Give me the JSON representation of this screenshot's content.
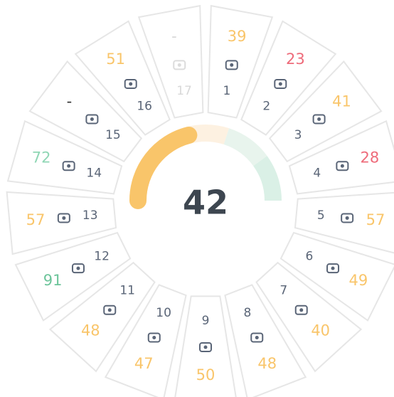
{
  "score": {
    "value": 42,
    "range": [
      0,
      100
    ],
    "color": "#f9c56a",
    "bands": [
      {
        "from": 0,
        "to": 60,
        "color": "#fdf1e1"
      },
      {
        "from": 60,
        "to": 80,
        "color": "#e8f4ed"
      },
      {
        "from": 80,
        "to": 100,
        "color": "#daf0e6"
      }
    ]
  },
  "goals": [
    {
      "number": 1,
      "score": 39,
      "color": "#f9c56a"
    },
    {
      "number": 2,
      "score": 23,
      "color": "#ee6b7a"
    },
    {
      "number": 3,
      "score": 41,
      "color": "#f9c56a"
    },
    {
      "number": 4,
      "score": 28,
      "color": "#ee6b7a"
    },
    {
      "number": 5,
      "score": 57,
      "color": "#f9c56a"
    },
    {
      "number": 6,
      "score": 49,
      "color": "#f9c56a"
    },
    {
      "number": 7,
      "score": 40,
      "color": "#f9c56a"
    },
    {
      "number": 8,
      "score": 48,
      "color": "#f9c56a"
    },
    {
      "number": 9,
      "score": 50,
      "color": "#f9c56a"
    },
    {
      "number": 10,
      "score": 47,
      "color": "#f9c56a"
    },
    {
      "number": 11,
      "score": 48,
      "color": "#f9c56a"
    },
    {
      "number": 12,
      "score": 91,
      "color": "#6cc49a"
    },
    {
      "number": 13,
      "score": 57,
      "color": "#f9c56a"
    },
    {
      "number": 14,
      "score": 72,
      "color": "#8fd6b4"
    },
    {
      "number": 15,
      "score": null,
      "score_label": "-",
      "color": "#333333"
    },
    {
      "number": 16,
      "score": 51,
      "color": "#f9c56a"
    },
    {
      "number": 17,
      "score": null,
      "score_label": "-",
      "color": "#d8d8d8"
    }
  ]
}
